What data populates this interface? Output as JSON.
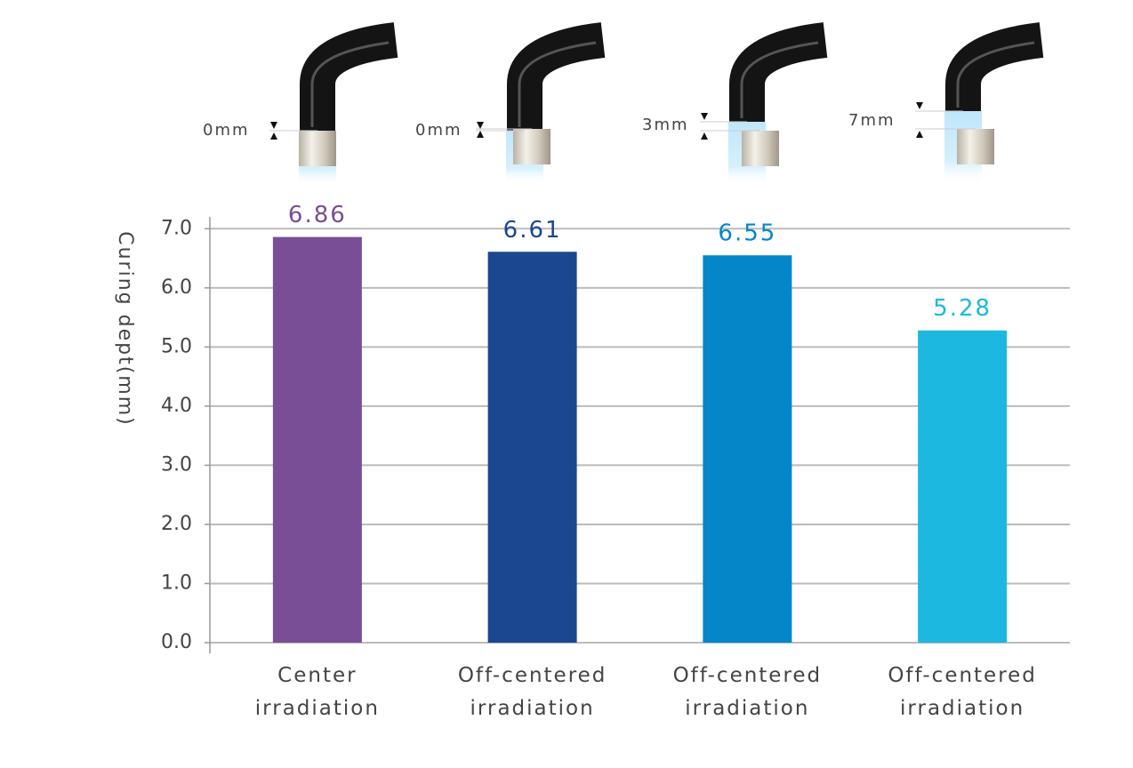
{
  "chart_data": {
    "type": "bar",
    "y_label": "Curing dept(mm)",
    "categories": [
      "Center irradiation",
      "Off-centered irradiation",
      "Off-centered irradiation",
      "Off-centered irradiation"
    ],
    "annotations": [
      "0mm",
      "0mm",
      "3mm",
      "7mm"
    ],
    "values": [
      6.86,
      6.61,
      6.55,
      5.28
    ],
    "colors": [
      "#7a4e96",
      "#1a4790",
      "#0486c8",
      "#1cb8e0"
    ],
    "ylim": [
      0,
      7.2
    ],
    "yticks": [
      {
        "value": 0,
        "label": "0.0"
      },
      {
        "value": 1,
        "label": "1.0"
      },
      {
        "value": 2,
        "label": "2.0"
      },
      {
        "value": 3,
        "label": "3.0"
      },
      {
        "value": 4,
        "label": "4.0"
      },
      {
        "value": 5,
        "label": "5.0"
      },
      {
        "value": 6,
        "label": "6.0"
      },
      {
        "value": 7,
        "label": "7.0"
      }
    ],
    "grid": true
  }
}
